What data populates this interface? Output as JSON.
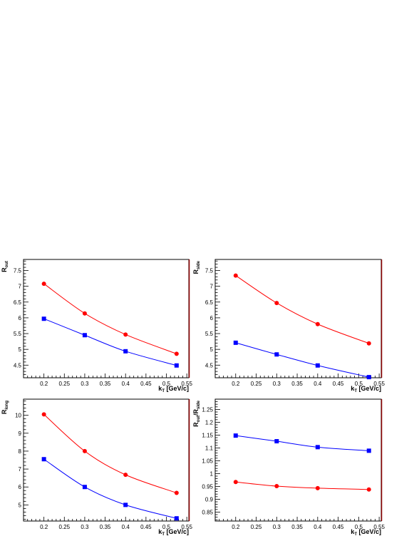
{
  "chart_data": [
    {
      "type": "line",
      "panel": "top-left",
      "xlabel": "k",
      "xlabel_sub": "T",
      "xlabel_unit": " [GeV/c]",
      "ylabel": "R",
      "ylabel_sub": "out",
      "xlim": [
        0.15,
        0.555
      ],
      "ylim": [
        4.1,
        7.85
      ],
      "xticks": [
        "0.2",
        "0.25",
        "0.3",
        "0.35",
        "0.4",
        "0.45",
        "0.5",
        "0.55"
      ],
      "yticks": [
        "4.5",
        "5",
        "5.5",
        "6",
        "6.5",
        "7",
        "7.5"
      ],
      "series": [
        {
          "color": "#ff0000",
          "marker": "circle",
          "x": [
            0.2,
            0.3,
            0.4,
            0.525
          ],
          "y": [
            7.08,
            6.14,
            5.47,
            4.86
          ]
        },
        {
          "color": "#0000ff",
          "marker": "square",
          "x": [
            0.2,
            0.3,
            0.4,
            0.525
          ],
          "y": [
            5.97,
            5.45,
            4.94,
            4.49
          ]
        }
      ]
    },
    {
      "type": "line",
      "panel": "top-right",
      "xlabel": "k",
      "xlabel_sub": "T",
      "xlabel_unit": " [GeV/c]",
      "ylabel": "R",
      "ylabel_sub": "side",
      "xlim": [
        0.15,
        0.555
      ],
      "ylim": [
        4.1,
        7.85
      ],
      "xticks": [
        "0.2",
        "0.25",
        "0.3",
        "0.35",
        "0.4",
        "0.45",
        "0.5",
        "0.55"
      ],
      "yticks": [
        "4.5",
        "5",
        "5.5",
        "6",
        "6.5",
        "7",
        "7.5"
      ],
      "series": [
        {
          "color": "#ff0000",
          "marker": "circle",
          "x": [
            0.2,
            0.3,
            0.4,
            0.525
          ],
          "y": [
            7.34,
            6.47,
            5.8,
            5.19
          ]
        },
        {
          "color": "#0000ff",
          "marker": "square",
          "x": [
            0.2,
            0.3,
            0.4,
            0.525
          ],
          "y": [
            5.21,
            4.84,
            4.49,
            4.12
          ]
        }
      ]
    },
    {
      "type": "line",
      "panel": "bottom-left",
      "xlabel": "k",
      "xlabel_sub": "T",
      "xlabel_unit": " [GeV/c]",
      "ylabel": "R",
      "ylabel_sub": "long",
      "xlim": [
        0.15,
        0.555
      ],
      "ylim": [
        4.1,
        10.9
      ],
      "xticks": [
        "0.2",
        "0.25",
        "0.3",
        "0.35",
        "0.4",
        "0.45",
        "0.5",
        "0.55"
      ],
      "yticks": [
        "5",
        "6",
        "7",
        "8",
        "9",
        "10"
      ],
      "series": [
        {
          "color": "#ff0000",
          "marker": "circle",
          "x": [
            0.2,
            0.3,
            0.4,
            0.525
          ],
          "y": [
            10.05,
            8.0,
            6.68,
            5.67
          ]
        },
        {
          "color": "#0000ff",
          "marker": "square",
          "x": [
            0.2,
            0.3,
            0.4,
            0.525
          ],
          "y": [
            7.55,
            6.0,
            5.0,
            4.25
          ]
        }
      ]
    },
    {
      "type": "line",
      "panel": "bottom-right",
      "xlabel": "k",
      "xlabel_sub": "T",
      "xlabel_unit": " [GeV/c]",
      "ylabel": "R",
      "ylabel_sub": "out",
      "ylabel2": "/R",
      "ylabel2_sub": "side",
      "xlim": [
        0.15,
        0.555
      ],
      "ylim": [
        0.815,
        1.29
      ],
      "xticks": [
        "0.2",
        "0.25",
        "0.3",
        "0.35",
        "0.4",
        "0.45",
        "0.5",
        "0.55"
      ],
      "yticks": [
        "0.85",
        "0.9",
        "0.95",
        "1",
        "1.05",
        "1.1",
        "1.15",
        "1.2",
        "1.25"
      ],
      "series": [
        {
          "color": "#0000ff",
          "marker": "square",
          "x": [
            0.2,
            0.3,
            0.4,
            0.525
          ],
          "y": [
            1.148,
            1.126,
            1.103,
            1.089
          ]
        },
        {
          "color": "#ff0000",
          "marker": "circle",
          "x": [
            0.2,
            0.3,
            0.4,
            0.525
          ],
          "y": [
            0.967,
            0.951,
            0.943,
            0.938
          ]
        }
      ]
    }
  ]
}
